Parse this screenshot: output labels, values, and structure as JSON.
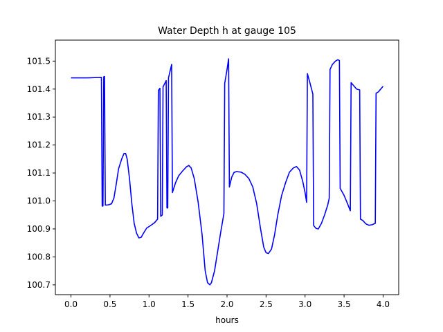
{
  "chart_data": {
    "type": "line",
    "title": "Water Depth h at gauge 105",
    "xlabel": "hours",
    "ylabel": "",
    "xlim": [
      -0.2,
      4.2
    ],
    "ylim": [
      100.665,
      101.575
    ],
    "xticks": [
      0.0,
      0.5,
      1.0,
      1.5,
      2.0,
      2.5,
      3.0,
      3.5,
      4.0
    ],
    "xtick_labels": [
      "0.0",
      "0.5",
      "1.0",
      "1.5",
      "2.0",
      "2.5",
      "3.0",
      "3.5",
      "4.0"
    ],
    "yticks": [
      100.7,
      100.8,
      100.9,
      101.0,
      101.1,
      101.2,
      101.3,
      101.4,
      101.5
    ],
    "ytick_labels": [
      "100.7",
      "100.8",
      "100.9",
      "101.0",
      "101.1",
      "101.2",
      "101.3",
      "101.4",
      "101.5"
    ],
    "grid": false,
    "legend": "none",
    "series": [
      {
        "color": "#0000ff",
        "points": [
          [
            0.0,
            101.44
          ],
          [
            0.2,
            101.44
          ],
          [
            0.39,
            101.442
          ],
          [
            0.4,
            100.982
          ],
          [
            0.41,
            100.982
          ],
          [
            0.42,
            101.444
          ],
          [
            0.43,
            101.445
          ],
          [
            0.44,
            100.985
          ],
          [
            0.48,
            100.986
          ],
          [
            0.52,
            100.99
          ],
          [
            0.55,
            101.01
          ],
          [
            0.58,
            101.06
          ],
          [
            0.61,
            101.115
          ],
          [
            0.65,
            101.15
          ],
          [
            0.68,
            101.17
          ],
          [
            0.7,
            101.17
          ],
          [
            0.72,
            101.15
          ],
          [
            0.75,
            101.08
          ],
          [
            0.78,
            100.99
          ],
          [
            0.81,
            100.92
          ],
          [
            0.84,
            100.885
          ],
          [
            0.87,
            100.868
          ],
          [
            0.9,
            100.87
          ],
          [
            0.93,
            100.885
          ],
          [
            0.97,
            100.903
          ],
          [
            1.02,
            100.912
          ],
          [
            1.07,
            100.922
          ],
          [
            1.11,
            100.935
          ],
          [
            1.12,
            101.395
          ],
          [
            1.14,
            101.403
          ],
          [
            1.15,
            100.945
          ],
          [
            1.17,
            100.95
          ],
          [
            1.18,
            101.408
          ],
          [
            1.22,
            101.43
          ],
          [
            1.23,
            100.975
          ],
          [
            1.24,
            100.975
          ],
          [
            1.25,
            101.44
          ],
          [
            1.29,
            101.488
          ],
          [
            1.3,
            101.03
          ],
          [
            1.34,
            101.065
          ],
          [
            1.38,
            101.09
          ],
          [
            1.43,
            101.107
          ],
          [
            1.48,
            101.122
          ],
          [
            1.51,
            101.127
          ],
          [
            1.54,
            101.118
          ],
          [
            1.58,
            101.08
          ],
          [
            1.63,
            100.995
          ],
          [
            1.68,
            100.88
          ],
          [
            1.72,
            100.75
          ],
          [
            1.75,
            100.708
          ],
          [
            1.78,
            100.7
          ],
          [
            1.8,
            100.708
          ],
          [
            1.84,
            100.75
          ],
          [
            1.88,
            100.82
          ],
          [
            1.92,
            100.89
          ],
          [
            1.96,
            100.955
          ],
          [
            1.97,
            101.42
          ],
          [
            2.0,
            101.47
          ],
          [
            2.02,
            101.508
          ],
          [
            2.03,
            101.05
          ],
          [
            2.06,
            101.085
          ],
          [
            2.09,
            101.102
          ],
          [
            2.12,
            101.105
          ],
          [
            2.18,
            101.103
          ],
          [
            2.23,
            101.095
          ],
          [
            2.28,
            101.08
          ],
          [
            2.33,
            101.05
          ],
          [
            2.38,
            100.99
          ],
          [
            2.43,
            100.9
          ],
          [
            2.47,
            100.835
          ],
          [
            2.5,
            100.815
          ],
          [
            2.53,
            100.812
          ],
          [
            2.57,
            100.828
          ],
          [
            2.61,
            100.88
          ],
          [
            2.65,
            100.95
          ],
          [
            2.7,
            101.02
          ],
          [
            2.75,
            101.065
          ],
          [
            2.8,
            101.103
          ],
          [
            2.85,
            101.118
          ],
          [
            2.89,
            101.123
          ],
          [
            2.93,
            101.11
          ],
          [
            2.97,
            101.07
          ],
          [
            3.0,
            101.03
          ],
          [
            3.02,
            100.995
          ],
          [
            3.03,
            101.455
          ],
          [
            3.06,
            101.425
          ],
          [
            3.1,
            101.382
          ],
          [
            3.11,
            100.912
          ],
          [
            3.14,
            100.902
          ],
          [
            3.17,
            100.9
          ],
          [
            3.21,
            100.92
          ],
          [
            3.25,
            100.95
          ],
          [
            3.29,
            100.985
          ],
          [
            3.31,
            101.01
          ],
          [
            3.32,
            101.47
          ],
          [
            3.35,
            101.488
          ],
          [
            3.39,
            101.5
          ],
          [
            3.42,
            101.505
          ],
          [
            3.44,
            101.502
          ],
          [
            3.45,
            101.045
          ],
          [
            3.5,
            101.02
          ],
          [
            3.54,
            100.993
          ],
          [
            3.58,
            100.965
          ],
          [
            3.59,
            101.423
          ],
          [
            3.62,
            101.413
          ],
          [
            3.66,
            101.4
          ],
          [
            3.7,
            101.397
          ],
          [
            3.71,
            100.935
          ],
          [
            3.74,
            100.93
          ],
          [
            3.78,
            100.918
          ],
          [
            3.82,
            100.913
          ],
          [
            3.86,
            100.915
          ],
          [
            3.9,
            100.92
          ],
          [
            3.91,
            101.385
          ],
          [
            3.94,
            101.39
          ],
          [
            3.97,
            101.4
          ],
          [
            4.0,
            101.41
          ]
        ]
      }
    ]
  }
}
